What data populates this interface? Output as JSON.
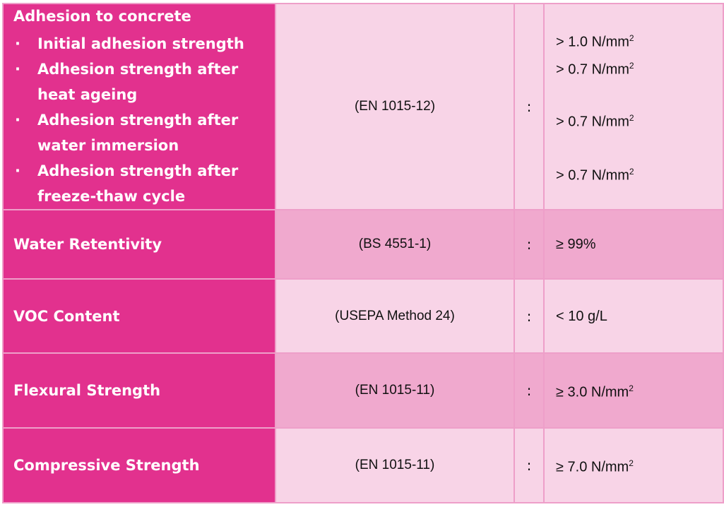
{
  "table": {
    "rows": [
      {
        "property": "Adhesion to concrete",
        "items": [
          "Initial adhesion strength",
          "Adhesion strength after heat ageing",
          "Adhesion strength after water immersion",
          "Adhesion strength after freeze-thaw cycle"
        ],
        "standard": "(EN 1015-12)",
        "separator": ":",
        "values": [
          {
            "text": "> 1.0 N/mm",
            "sup": "2"
          },
          {
            "text": "> 0.7 N/mm",
            "sup": "2"
          },
          {
            "text": "> 0.7 N/mm",
            "sup": "2"
          },
          {
            "text": "> 0.7 N/mm",
            "sup": "2"
          }
        ]
      },
      {
        "property": "Water Retentivity",
        "standard": "(BS 4551-1)",
        "separator": ":",
        "values": [
          {
            "text": "≥ 99%"
          }
        ]
      },
      {
        "property": "VOC Content",
        "standard": "(USEPA Method 24)",
        "separator": ":",
        "values": [
          {
            "text": "< 10 g/L"
          }
        ]
      },
      {
        "property": "Flexural Strength",
        "standard": "(EN 1015-11)",
        "separator": ":",
        "values": [
          {
            "text": "≥ 3.0 N/mm",
            "sup": "2"
          }
        ]
      },
      {
        "property": "Compressive Strength",
        "standard": "(EN 1015-11)",
        "separator": ":",
        "values": [
          {
            "text": "≥ 7.0 N/mm",
            "sup": "2"
          }
        ]
      }
    ]
  }
}
